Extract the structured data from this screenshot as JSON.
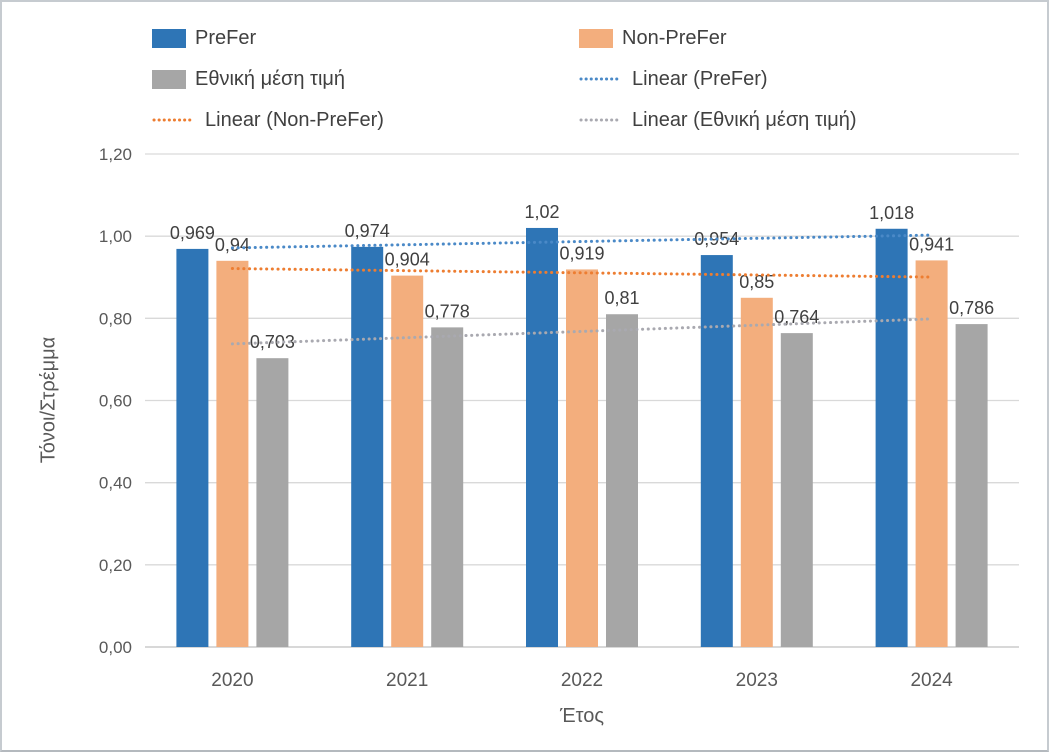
{
  "chart_data": {
    "type": "bar",
    "title": "",
    "categories": [
      "2020",
      "2021",
      "2022",
      "2023",
      "2024"
    ],
    "series": [
      {
        "name": "PreFer",
        "color": "#2E75B6",
        "values": [
          0.969,
          0.974,
          1.02,
          0.954,
          1.018
        ],
        "labels": [
          "0,969",
          "0,974",
          "1,02",
          "0,954",
          "1,018"
        ]
      },
      {
        "name": "Non-PreFer",
        "color": "#F3AE7D",
        "values": [
          0.94,
          0.904,
          0.919,
          0.85,
          0.941
        ],
        "labels": [
          "0,94",
          "0,904",
          "0,919",
          "0,85",
          "0,941"
        ]
      },
      {
        "name": "Εθνική μέση τιμή",
        "color": "#A6A6A6",
        "values": [
          0.703,
          0.778,
          0.81,
          0.764,
          0.786
        ],
        "labels": [
          "0,703",
          "0,778",
          "0,81",
          "0,764",
          "0,786"
        ]
      }
    ],
    "trendlines": [
      {
        "name": "Linear (PreFer)",
        "color": "#4A89C7",
        "start": 0.9714,
        "end": 1.0026
      },
      {
        "name": "Linear (Non-PreFer)",
        "color": "#ED7D31",
        "start": 0.9212,
        "end": 0.9004
      },
      {
        "name": "Linear (Εθνική μέση τιμή)",
        "color": "#A9A9B0",
        "start": 0.7378,
        "end": 0.7986
      }
    ],
    "xlabel": "Έτος",
    "ylabel": "Τόνοι/Στρέμμα",
    "ylim": [
      0,
      1.2
    ],
    "ytick_step": 0.2,
    "ytick_labels": [
      "0,00",
      "0,20",
      "0,40",
      "0,60",
      "0,80",
      "1,00",
      "1,20"
    ],
    "grid": true,
    "legend_position": "top",
    "colors": {
      "gridline": "#D9D9D9",
      "baseline": "#C0C0C0",
      "axis_text": "#595959",
      "data_label": "#404040"
    }
  },
  "legend": {
    "items": [
      {
        "label": "PreFer",
        "type": "rect",
        "color": "#2E75B6"
      },
      {
        "label": "Non-PreFer",
        "type": "rect",
        "color": "#F3AE7D"
      },
      {
        "label": "Εθνική μέση τιμή",
        "type": "rect",
        "color": "#A6A6A6"
      },
      {
        "label": "Linear (PreFer)",
        "type": "dotted-line",
        "color": "#4A89C7"
      },
      {
        "label": "Linear (Non-PreFer)",
        "type": "dotted-line",
        "color": "#ED7D31"
      },
      {
        "label": "Linear (Εθνική μέση τιμή)",
        "type": "dotted-line",
        "color": "#A9A9B0"
      }
    ]
  }
}
